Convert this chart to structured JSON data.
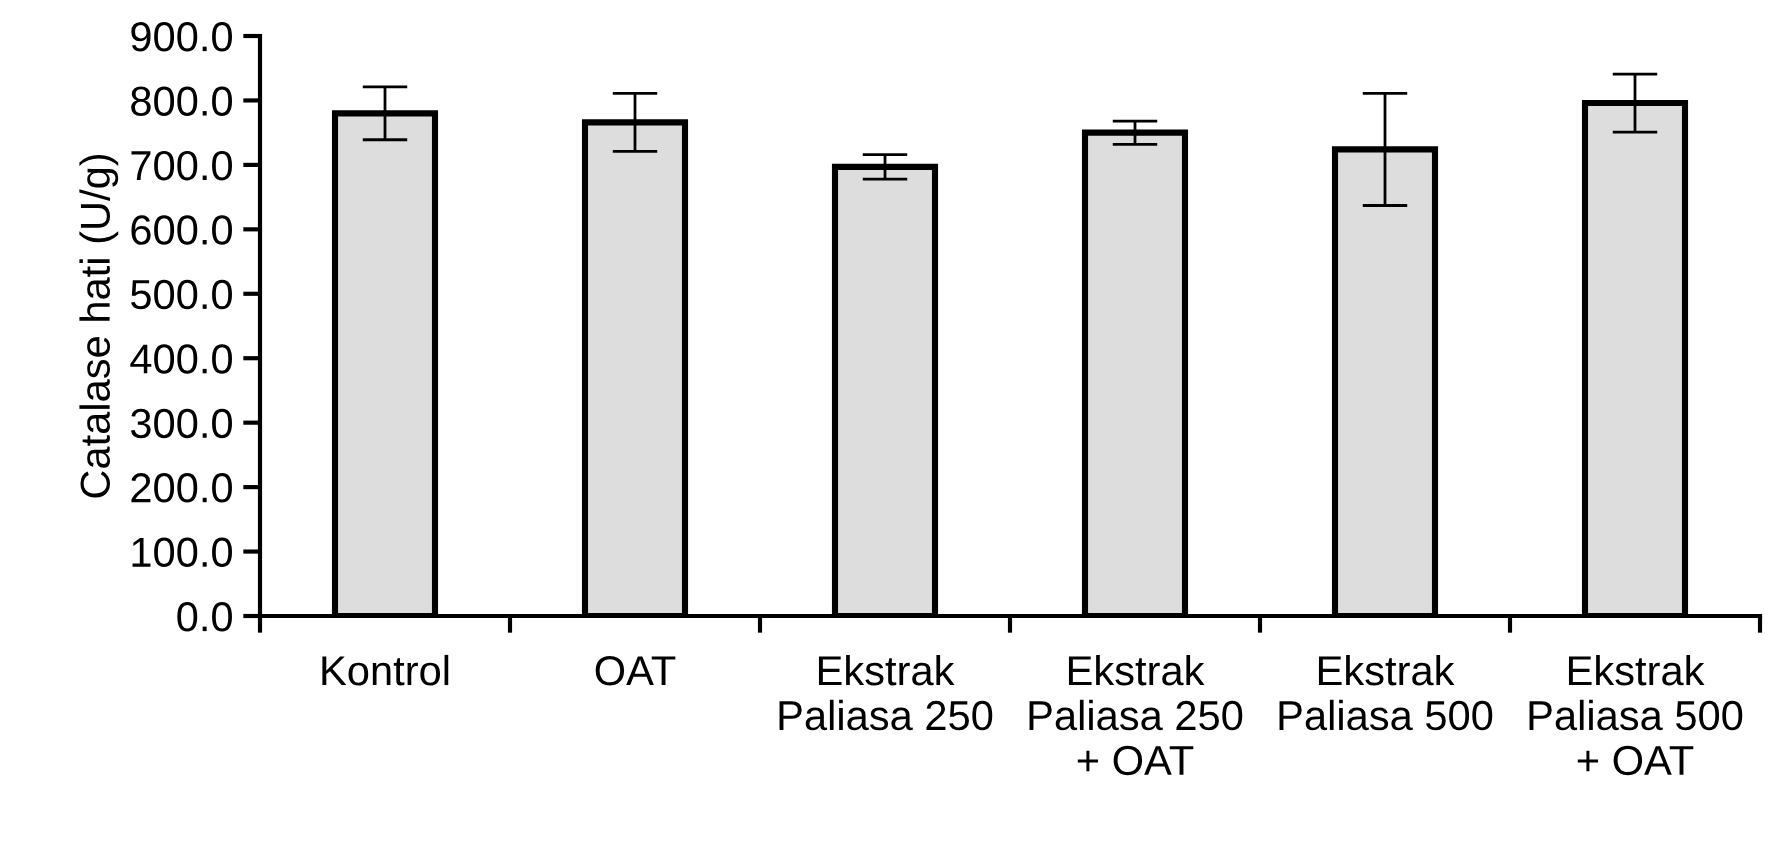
{
  "chart_data": {
    "type": "bar",
    "ylabel": "Catalase hati (U/g)",
    "categories": [
      "Kontrol",
      "OAT",
      "Ekstrak\nPaliasa 250",
      "Ekstrak\nPaliasa 250\n+ OAT",
      "Ekstrak\nPaliasa 500",
      "Ekstrak\nPaliasa 500\n+ OAT"
    ],
    "values": [
      780,
      766,
      697,
      750,
      724,
      796
    ],
    "errors": [
      41,
      45,
      19,
      18,
      87,
      45
    ],
    "color": "#dddddd",
    "ylim": [
      0,
      900
    ],
    "yticks": [
      {
        "value": 0,
        "label": "0.0"
      },
      {
        "value": 100,
        "label": "100.0"
      },
      {
        "value": 200,
        "label": "200.0"
      },
      {
        "value": 300,
        "label": "300.0"
      },
      {
        "value": 400,
        "label": "400.0"
      },
      {
        "value": 500,
        "label": "500.0"
      },
      {
        "value": 600,
        "label": "600.0"
      },
      {
        "value": 700,
        "label": "700.0"
      },
      {
        "value": 800,
        "label": "800.0"
      },
      {
        "value": 900,
        "label": "900.0"
      }
    ],
    "grid": false
  }
}
